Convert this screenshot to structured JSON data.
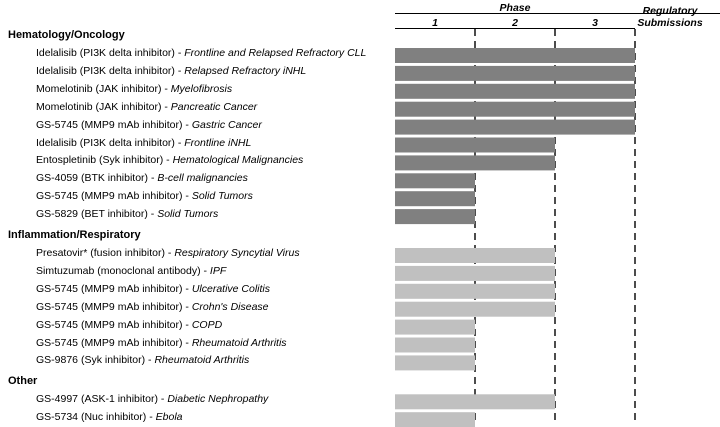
{
  "header": {
    "phase_title": "Phase",
    "phase_ticks": [
      "1",
      "2",
      "3"
    ],
    "regulatory_line1": "Regulatory",
    "regulatory_line2": "Submissions"
  },
  "colors": {
    "hematology": "#808080",
    "inflammation": "#c0c0c0",
    "other": "#c0c0c0"
  },
  "chart_data": {
    "type": "bar",
    "orientation": "horizontal",
    "title": "",
    "xlabel": "Phase",
    "x_ticks": [
      "1",
      "2",
      "3",
      "Regulatory Submissions"
    ],
    "grid": "dashed vertical lines at phase boundaries",
    "sections": [
      {
        "name": "Hematology/Oncology",
        "color": "#808080",
        "rows": [
          {
            "compound": "Idelalisib (PI3K delta inhibitor) - ",
            "indication": "Frontline and Relapsed Refractory CLL",
            "phase": 3
          },
          {
            "compound": "Idelalisib (PI3K delta inhibitor) - ",
            "indication": "Relapsed Refractory iNHL",
            "phase": 3
          },
          {
            "compound": "Momelotinib (JAK inhibitor) - ",
            "indication": "Myelofibrosis",
            "phase": 3
          },
          {
            "compound": "Momelotinib (JAK inhibitor) - ",
            "indication": "Pancreatic Cancer",
            "phase": 3
          },
          {
            "compound": "GS-5745 (MMP9 mAb inhibitor) - ",
            "indication": "Gastric Cancer",
            "phase": 3
          },
          {
            "compound": "Idelalisib (PI3K delta inhibitor) - ",
            "indication": "Frontline iNHL",
            "phase": 2
          },
          {
            "compound": "Entospletinib (Syk inhibitor) - ",
            "indication": "Hematological Malignancies",
            "phase": 2
          },
          {
            "compound": "GS-4059 (BTK inhibitor) - ",
            "indication": "B-cell malignancies",
            "phase": 1
          },
          {
            "compound": "GS-5745 (MMP9 mAb inhibitor) - ",
            "indication": "Solid Tumors",
            "phase": 1
          },
          {
            "compound": "GS-5829 (BET inhibitor) - ",
            "indication": "Solid Tumors",
            "phase": 1
          }
        ]
      },
      {
        "name": "Inflammation/Respiratory",
        "color": "#c0c0c0",
        "rows": [
          {
            "compound": "Presatovir* (fusion inhibitor) - ",
            "indication": "Respiratory Syncytial Virus",
            "phase": 2
          },
          {
            "compound": "Simtuzumab (monoclonal antibody) - ",
            "indication": "IPF",
            "phase": 2
          },
          {
            "compound": "GS-5745 (MMP9 mAb inhibitor) - ",
            "indication": "Ulcerative Colitis",
            "phase": 2
          },
          {
            "compound": "GS-5745 (MMP9 mAb inhibitor) - ",
            "indication": "Crohn's Disease",
            "phase": 2
          },
          {
            "compound": "GS-5745 (MMP9 mAb inhibitor) - ",
            "indication": "COPD",
            "phase": 1
          },
          {
            "compound": "GS-5745 (MMP9 mAb inhibitor) - ",
            "indication": "Rheumatoid Arthritis",
            "phase": 1
          },
          {
            "compound": "GS-9876 (Syk inhibitor) - ",
            "indication": "Rheumatoid Arthritis",
            "phase": 1
          }
        ]
      },
      {
        "name": "Other",
        "color": "#c0c0c0",
        "rows": [
          {
            "compound": "GS-4997 (ASK-1 inhibitor) - ",
            "indication": "Diabetic Nephropathy",
            "phase": 2
          },
          {
            "compound": "GS-5734 (Nuc inhibitor) - ",
            "indication": "Ebola",
            "phase": 1
          }
        ]
      }
    ]
  }
}
